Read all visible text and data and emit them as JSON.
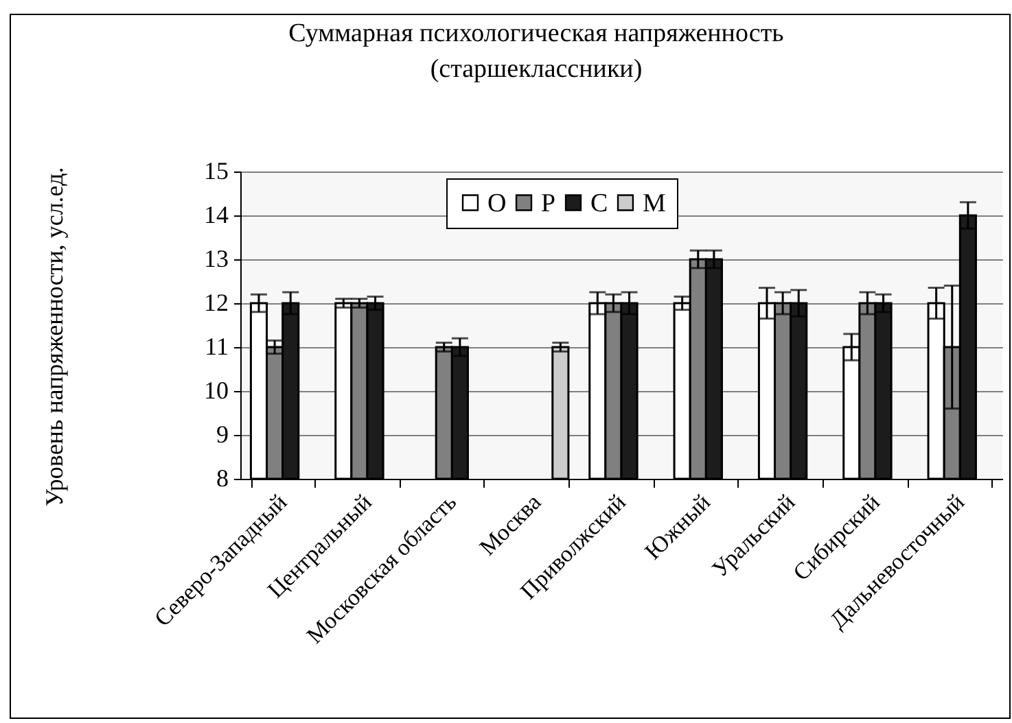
{
  "chart_data": {
    "type": "bar",
    "title": "Суммарная психологическая напряженность",
    "subtitle": "(старшеклассники)",
    "ylabel": "Уровень напряженности, усл.ед.",
    "categories": [
      "Северо-Западный",
      "Центральный",
      "Московская область",
      "Москва",
      "Приволжский",
      "Южный",
      "Уральский",
      "Сибирский",
      "Дальневосточный"
    ],
    "series": [
      {
        "name": "О",
        "color": "#ffffff",
        "values": [
          12,
          12,
          null,
          null,
          12,
          12,
          12,
          11,
          12
        ],
        "errors": [
          0.2,
          0.1,
          null,
          null,
          0.25,
          0.15,
          0.35,
          0.3,
          0.35
        ]
      },
      {
        "name": "Р",
        "color": "#808080",
        "values": [
          11,
          12,
          11,
          null,
          12,
          13,
          12,
          12,
          11
        ],
        "errors": [
          0.15,
          0.1,
          0.1,
          null,
          0.2,
          0.2,
          0.25,
          0.25,
          1.4
        ]
      },
      {
        "name": "С",
        "color": "#1c1c1c",
        "values": [
          12,
          12,
          11,
          null,
          12,
          13,
          12,
          12,
          14
        ],
        "errors": [
          0.25,
          0.15,
          0.2,
          null,
          0.25,
          0.2,
          0.3,
          0.2,
          0.3
        ]
      },
      {
        "name": "М",
        "color": "#cccccc",
        "values": [
          null,
          null,
          null,
          11,
          null,
          null,
          null,
          null,
          null
        ],
        "errors": [
          null,
          null,
          null,
          0.1,
          null,
          null,
          null,
          null,
          null
        ]
      }
    ],
    "ylim": [
      8,
      15
    ],
    "yticks": [
      8,
      9,
      10,
      11,
      12,
      13,
      14,
      15
    ],
    "grid": "y",
    "legend": "top"
  }
}
